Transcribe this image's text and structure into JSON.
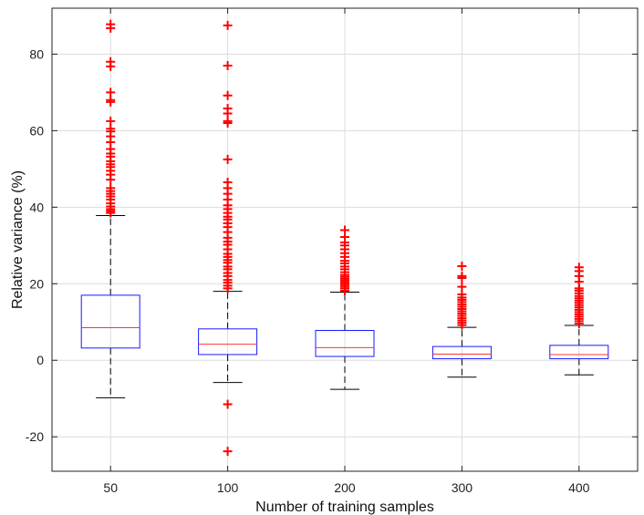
{
  "chart_data": {
    "type": "boxplot",
    "title": "",
    "xlabel": "Number of training samples",
    "ylabel": "Relative variance (%)",
    "categories": [
      "50",
      "100",
      "200",
      "300",
      "400"
    ],
    "ylim": [
      -29,
      92
    ],
    "yticks": [
      -20,
      0,
      20,
      40,
      60,
      80
    ],
    "ytick_labels": [
      "-20",
      "0",
      "20",
      "40",
      "60",
      "80"
    ],
    "grid": true,
    "colors": {
      "box": "#1a1aff",
      "median": "#ff3333",
      "whisker": "#000000",
      "outlier": "#ff0000",
      "grid": "#dcdcdc"
    },
    "boxes": [
      {
        "category": "50",
        "whisker_low": -9.8,
        "q1": 3.2,
        "median": 8.5,
        "q3": 17.0,
        "whisker_high": 37.8,
        "outliers": [
          38.5,
          39.0,
          39.5,
          40.2,
          41.0,
          42.0,
          42.8,
          43.5,
          44.2,
          45.0,
          47.2,
          48.5,
          49.5,
          50.5,
          51.2,
          52.0,
          53.2,
          54.0,
          55.2,
          57.0,
          58.5,
          59.8,
          60.5,
          62.5,
          67.5,
          68.0,
          70.0,
          76.8,
          78.0,
          86.8,
          87.8
        ]
      },
      {
        "category": "100",
        "whisker_low": -5.8,
        "q1": 1.5,
        "median": 4.2,
        "q3": 8.2,
        "whisker_high": 18.0,
        "outliers": [
          -11.5,
          -23.8,
          18.8,
          19.5,
          20.3,
          21.0,
          22.0,
          22.8,
          23.8,
          24.5,
          25.5,
          26.2,
          27.0,
          27.8,
          29.0,
          30.2,
          31.0,
          32.0,
          33.5,
          34.8,
          35.8,
          36.8,
          37.5,
          38.5,
          39.5,
          40.5,
          42.0,
          43.5,
          45.0,
          46.5,
          52.5,
          62.0,
          62.5,
          64.5,
          65.8,
          69.2,
          77.0,
          87.5
        ]
      },
      {
        "category": "200",
        "whisker_low": -7.6,
        "q1": 1.0,
        "median": 3.3,
        "q3": 7.8,
        "whisker_high": 17.8,
        "outliers": [
          18.2,
          18.8,
          19.3,
          19.8,
          20.3,
          20.8,
          21.3,
          21.8,
          22.3,
          23.0,
          23.8,
          24.5,
          25.3,
          26.0,
          27.0,
          28.0,
          29.0,
          30.0,
          30.8,
          32.2,
          34.0
        ]
      },
      {
        "category": "300",
        "whisker_low": -4.4,
        "q1": 0.4,
        "median": 1.6,
        "q3": 3.6,
        "whisker_high": 8.6,
        "outliers": [
          9.2,
          9.8,
          10.4,
          11.0,
          11.6,
          12.2,
          12.8,
          13.4,
          14.0,
          14.6,
          15.2,
          15.8,
          16.4,
          17.2,
          19.2,
          21.5,
          22.0,
          24.6
        ]
      },
      {
        "category": "400",
        "whisker_low": -3.8,
        "q1": 0.4,
        "median": 1.5,
        "q3": 3.9,
        "whisker_high": 9.1,
        "outliers": [
          9.6,
          10.2,
          10.8,
          11.4,
          12.0,
          12.6,
          13.2,
          13.8,
          14.4,
          15.0,
          15.6,
          16.2,
          16.8,
          17.5,
          18.2,
          18.8,
          20.5,
          22.0,
          23.3,
          24.3
        ]
      }
    ]
  }
}
